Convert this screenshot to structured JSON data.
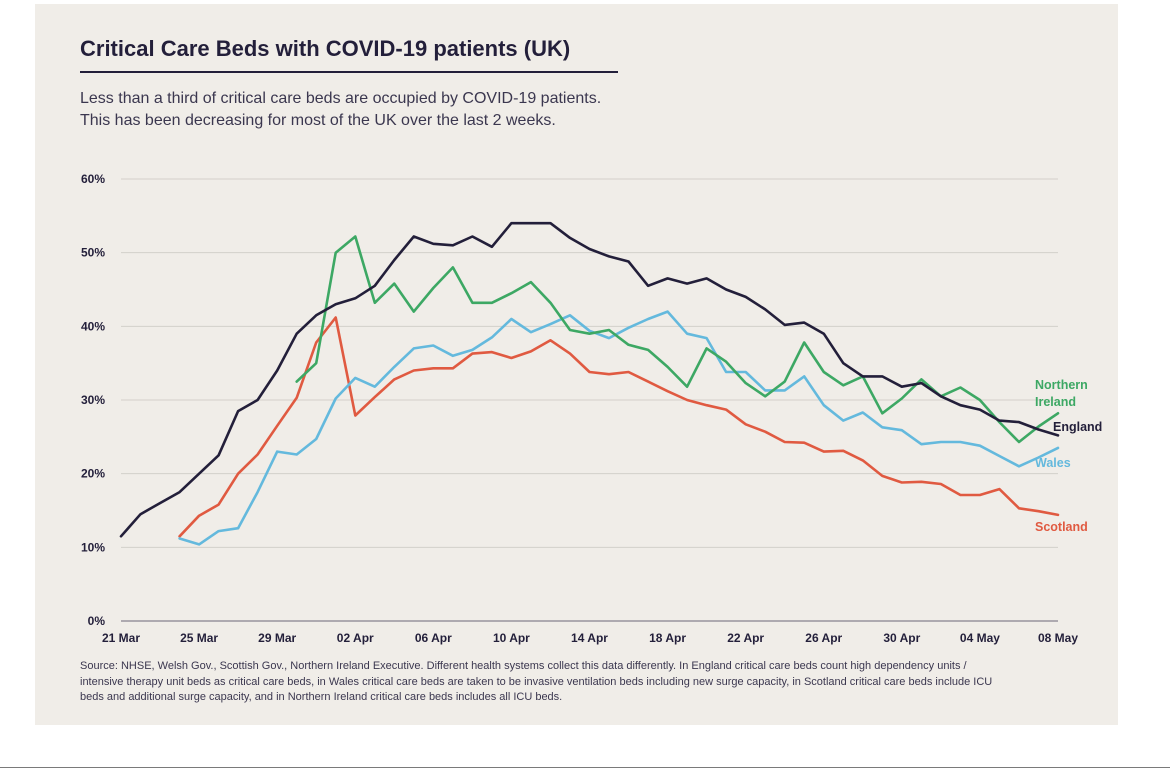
{
  "title": "Critical Care Beds with COVID-19 patients (UK)",
  "subtitle_lines": [
    "Less than a third of critical care beds are occupied by COVID-19 patients.",
    "This has been decreasing for most of the UK over the last 2 weeks."
  ],
  "source": "Source: NHSE, Welsh Gov., Scottish Gov., Northern Ireland Executive. Different health systems collect this data differently. In England critical care beds count high dependency units / intensive therapy unit beds as critical care beds, in Wales critical care beds are taken to be invasive ventilation beds including new surge capacity, in Scotland critical care beds include ICU beds and additional surge capacity, and in Northern Ireland critical care beds includes all ICU beds.",
  "chart_data": {
    "type": "line",
    "title": "Critical Care Beds with COVID-19 patients (UK)",
    "xlabel": "",
    "ylabel": "",
    "x_start": "21 Mar",
    "x_end": "08 May",
    "x_ticks": [
      "21 Mar",
      "25 Mar",
      "29 Mar",
      "02 Apr",
      "06 Apr",
      "10 Apr",
      "14 Apr",
      "18 Apr",
      "22 Apr",
      "26 Apr",
      "30 Apr",
      "04 May",
      "08 May"
    ],
    "ylim": [
      0,
      60
    ],
    "y_ticks": [
      0,
      10,
      20,
      30,
      40,
      50,
      60
    ],
    "y_tick_labels": [
      "0%",
      "10%",
      "20%",
      "30%",
      "40%",
      "50%",
      "60%"
    ],
    "grid": "horizontal",
    "legend": "direct labels at right end of lines",
    "series": [
      {
        "name": "England",
        "label": "England",
        "color": "#231f3a",
        "start": "21 Mar",
        "values": [
          11.5,
          14.5,
          16,
          17.5,
          20,
          22.5,
          28.5,
          30,
          34,
          39,
          41.5,
          43,
          43.8,
          45.5,
          49,
          52.2,
          51.2,
          51,
          52.2,
          50.8,
          54,
          54,
          54,
          52,
          50.5,
          49.5,
          48.8,
          45.5,
          46.5,
          45.8,
          46.5,
          45,
          44,
          42.3,
          40.2,
          40.5,
          39,
          35,
          33.2,
          33.2,
          31.8,
          32.3,
          30.5,
          29.3,
          28.7,
          27.2,
          27,
          26,
          25.2
        ]
      },
      {
        "name": "Northern Ireland",
        "label": "Northern Ireland",
        "color": "#3da864",
        "start": "30 Mar",
        "values": [
          32.5,
          35,
          50,
          52.2,
          43.2,
          45.8,
          42,
          45.2,
          48,
          43.2,
          43.2,
          44.5,
          46,
          43.2,
          39.5,
          39,
          39.5,
          37.5,
          36.8,
          34.5,
          31.8,
          37,
          35.2,
          32.3,
          30.5,
          32.5,
          37.8,
          33.8,
          32,
          33.2,
          28.2,
          30.2,
          32.8,
          30.5,
          31.7,
          30,
          27,
          24.3,
          26.4,
          28.2
        ]
      },
      {
        "name": "Wales",
        "label": "Wales",
        "color": "#64b9dd",
        "start": "24 Mar",
        "values": [
          11.2,
          10.4,
          12.2,
          12.6,
          17.5,
          23,
          22.6,
          24.7,
          30.2,
          33,
          31.8,
          34.5,
          37,
          37.4,
          36,
          36.8,
          38.5,
          41,
          39.2,
          40.3,
          41.5,
          39.4,
          38.4,
          39.8,
          41,
          42,
          39,
          38.4,
          33.8,
          33.8,
          31.3,
          31.3,
          33.2,
          29.3,
          27.2,
          28.3,
          26.3,
          25.9,
          24,
          24.3,
          24.3,
          23.8,
          22.4,
          21,
          22.2,
          23.5
        ]
      },
      {
        "name": "Scotland",
        "label": "Scotland",
        "color": "#e05a41",
        "start": "24 Mar",
        "values": [
          11.5,
          14.3,
          15.8,
          20,
          22.6,
          26.5,
          30.3,
          37.8,
          41.2,
          27.9,
          30.4,
          32.8,
          34,
          34.3,
          34.3,
          36.3,
          36.5,
          35.7,
          36.6,
          38.1,
          36.3,
          33.8,
          33.5,
          33.8,
          32.5,
          31.2,
          30,
          29.3,
          28.7,
          26.7,
          25.7,
          24.3,
          24.2,
          23,
          23.1,
          21.8,
          19.7,
          18.8,
          18.9,
          18.6,
          17.1,
          17.1,
          17.9,
          15.3,
          14.9,
          14.4
        ]
      }
    ]
  }
}
